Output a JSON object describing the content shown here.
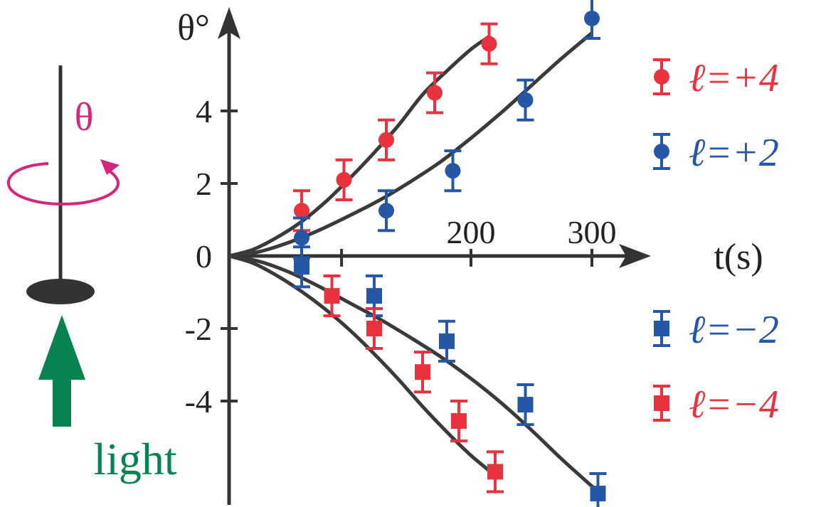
{
  "chart_data": {
    "type": "scatter",
    "xlabel": "t(s)",
    "ylabel": "θ°",
    "x_ticks": [
      "200",
      "300"
    ],
    "y_ticks": [
      "4",
      "2",
      "0",
      "-2",
      "-4"
    ],
    "xlim": [
      0,
      330
    ],
    "ylim": [
      -6.5,
      6.5
    ],
    "grid": false,
    "legend_position": "right",
    "error_bar": 0.55,
    "series": [
      {
        "name": "ℓ=+4",
        "marker": "circle",
        "color": "#e8333f",
        "x": [
          60,
          95,
          130,
          170,
          215
        ],
        "y": [
          1.25,
          2.1,
          3.2,
          4.5,
          5.85
        ],
        "fit_points": [
          [
            0,
            0
          ],
          [
            20,
            0.18
          ],
          [
            40,
            0.52
          ],
          [
            60,
            0.95
          ],
          [
            80,
            1.5
          ],
          [
            100,
            2.15
          ],
          [
            120,
            2.85
          ],
          [
            140,
            3.6
          ],
          [
            160,
            4.45
          ],
          [
            180,
            5.1
          ],
          [
            200,
            5.7
          ],
          [
            215,
            6.05
          ]
        ]
      },
      {
        "name": "ℓ=+2",
        "marker": "circle",
        "color": "#2557a6",
        "x": [
          60,
          130,
          185,
          245,
          300
        ],
        "y": [
          0.5,
          1.25,
          2.35,
          4.3,
          6.55
        ],
        "fit_points": [
          [
            0,
            0
          ],
          [
            25,
            0.12
          ],
          [
            50,
            0.38
          ],
          [
            75,
            0.72
          ],
          [
            100,
            1.12
          ],
          [
            125,
            1.55
          ],
          [
            150,
            2.05
          ],
          [
            175,
            2.6
          ],
          [
            200,
            3.25
          ],
          [
            225,
            3.95
          ],
          [
            250,
            4.7
          ],
          [
            275,
            5.45
          ],
          [
            300,
            6.15
          ]
        ]
      },
      {
        "name": "ℓ=-2",
        "marker": "square",
        "color": "#2557a6",
        "x": [
          60,
          120,
          180,
          245,
          305
        ],
        "y": [
          -0.3,
          -1.1,
          -2.35,
          -4.1,
          -6.55
        ],
        "fit_points": [
          [
            0,
            0
          ],
          [
            25,
            -0.15
          ],
          [
            50,
            -0.45
          ],
          [
            75,
            -0.85
          ],
          [
            100,
            -1.3
          ],
          [
            125,
            -1.75
          ],
          [
            150,
            -2.25
          ],
          [
            175,
            -2.78
          ],
          [
            200,
            -3.38
          ],
          [
            225,
            -4.05
          ],
          [
            250,
            -4.8
          ],
          [
            275,
            -5.6
          ],
          [
            305,
            -6.5
          ]
        ]
      },
      {
        "name": "ℓ=-4",
        "marker": "square",
        "color": "#e8333f",
        "x": [
          85,
          120,
          160,
          190,
          220
        ],
        "y": [
          -1.1,
          -2.0,
          -3.2,
          -4.55,
          -5.95
        ],
        "fit_points": [
          [
            0,
            0
          ],
          [
            20,
            -0.2
          ],
          [
            40,
            -0.55
          ],
          [
            60,
            -0.98
          ],
          [
            80,
            -1.48
          ],
          [
            100,
            -2.05
          ],
          [
            120,
            -2.7
          ],
          [
            140,
            -3.4
          ],
          [
            160,
            -4.15
          ],
          [
            180,
            -4.85
          ],
          [
            200,
            -5.5
          ],
          [
            220,
            -6.05
          ]
        ]
      }
    ],
    "legend": [
      {
        "label": "ℓ=+4",
        "marker": "circle",
        "color": "#e8333f"
      },
      {
        "label": "ℓ=+2",
        "marker": "circle",
        "color": "#2557a6"
      },
      {
        "label": "ℓ=−2",
        "marker": "square",
        "color": "#2557a6"
      },
      {
        "label": "ℓ=−4",
        "marker": "square",
        "color": "#e8333f"
      }
    ]
  },
  "illustration": {
    "theta_label": "θ",
    "light_label": "light",
    "theta_color": "#d4267a",
    "light_color": "#07834f",
    "pendulum_color": "#333333"
  }
}
